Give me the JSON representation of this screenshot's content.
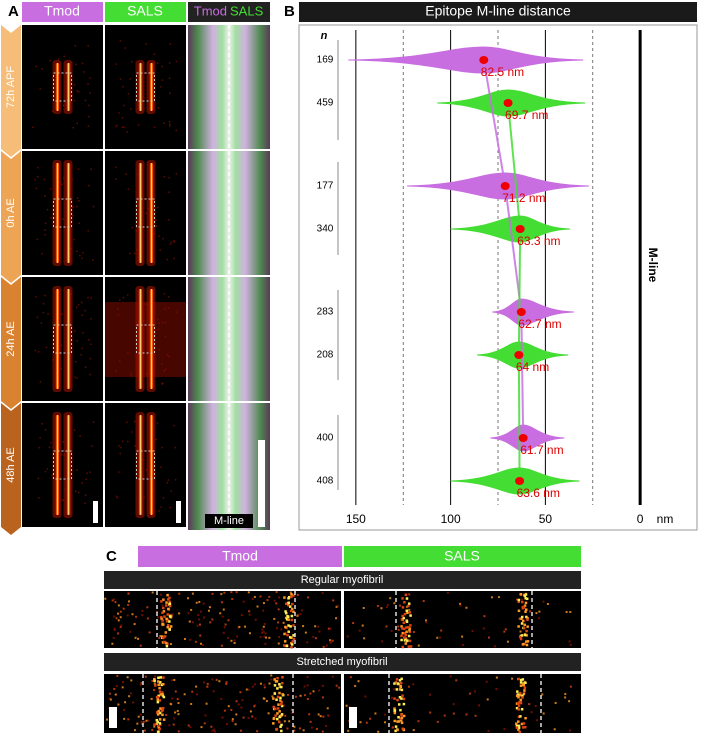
{
  "panel_labels": [
    "A",
    "B",
    "C"
  ],
  "panel_a": {
    "columns": [
      "Tmod",
      "SALS"
    ],
    "merge": [
      "Tmod",
      "SALS"
    ],
    "rows": [
      "72h APF",
      "0h AE",
      "24h AE",
      "48h AE"
    ],
    "mline": "M-line"
  },
  "chart_data": {
    "type": "violin",
    "title": "Epitope M-line distance",
    "n_label": "n",
    "unit": "nm",
    "mline_label": "M-line",
    "xlim": [
      180,
      -30
    ],
    "xticks": [
      150,
      100,
      50,
      0
    ],
    "xminor": [
      125,
      75,
      25
    ],
    "series": [
      {
        "color": "#c86ee0",
        "n": [
          169,
          177,
          283,
          400
        ],
        "median": [
          82.5,
          71.2,
          62.7,
          61.7
        ],
        "value_labels": [
          "82.5 nm",
          "71.2 nm",
          "62.7 nm",
          "61.7 nm"
        ],
        "min": [
          30,
          27,
          35,
          40
        ],
        "max": [
          154,
          123,
          78,
          79
        ]
      },
      {
        "color": "#44dd33",
        "n": [
          459,
          340,
          208,
          408
        ],
        "median": [
          69.7,
          63.3,
          64,
          63.6
        ],
        "value_labels": [
          "69.7 nm",
          "63.3 nm",
          "64 nm",
          "63.6 nm"
        ],
        "min": [
          29,
          37,
          38,
          32
        ],
        "max": [
          107,
          100,
          86,
          100
        ]
      }
    ]
  },
  "panel_c": {
    "columns": [
      "Tmod",
      "SALS"
    ],
    "rows": [
      "Regular myofibril",
      "Stretched myofibril"
    ]
  }
}
